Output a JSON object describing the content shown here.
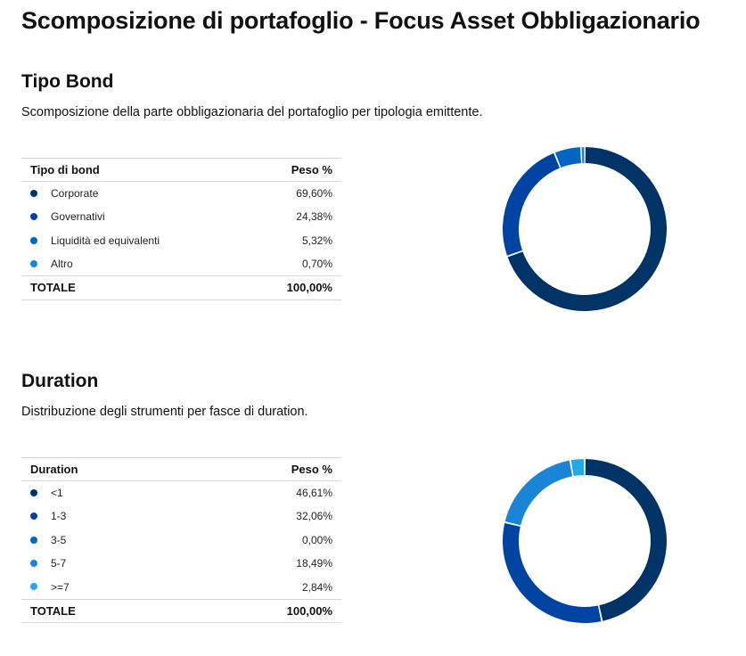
{
  "page": {
    "title": "Scomposizione di portafoglio - Focus Asset Obbligazionario"
  },
  "colors": [
    "#003366",
    "#0044a3",
    "#0066c0",
    "#1a85d6",
    "#23a8e8"
  ],
  "sections": [
    {
      "title": "Tipo Bond",
      "description": "Scomposizione della parte obbligazionaria del portafoglio per tipologia emittente.",
      "header": {
        "label": "Tipo di bond",
        "value": "Peso %"
      },
      "rows": [
        {
          "label": "Corporate",
          "value": "69,60%"
        },
        {
          "label": "Governativi",
          "value": "24,38%"
        },
        {
          "label": "Liquidità ed equivalenti",
          "value": "5,32%"
        },
        {
          "label": "Altro",
          "value": "0,70%"
        }
      ],
      "total": {
        "label": "TOTALE",
        "value": "100,00%"
      }
    },
    {
      "title": "Duration",
      "description": "Distribuzione degli strumenti per fasce di duration.",
      "header": {
        "label": "Duration",
        "value": "Peso %"
      },
      "rows": [
        {
          "label": "<1",
          "value": "46,61%"
        },
        {
          "label": "1-3",
          "value": "32,06%"
        },
        {
          "label": "3-5",
          "value": "0,00%"
        },
        {
          "label": "5-7",
          "value": "18,49%"
        },
        {
          "label": ">=7",
          "value": "2,84%"
        }
      ],
      "total": {
        "label": "TOTALE",
        "value": "100,00%"
      }
    }
  ],
  "chart_data": [
    {
      "type": "pie",
      "categories": [
        "Corporate",
        "Governativi",
        "Liquidità ed equivalenti",
        "Altro"
      ],
      "values": [
        69.6,
        24.38,
        5.32,
        0.7
      ],
      "colors": [
        "#003366",
        "#0044a3",
        "#0066c0",
        "#1a85d6"
      ]
    },
    {
      "type": "pie",
      "categories": [
        "<1",
        "1-3",
        "3-5",
        "5-7",
        ">=7"
      ],
      "values": [
        46.61,
        32.06,
        0.0,
        18.49,
        2.84
      ],
      "colors": [
        "#003366",
        "#0044a3",
        "#0066c0",
        "#1a85d6",
        "#23a8e8"
      ]
    }
  ]
}
